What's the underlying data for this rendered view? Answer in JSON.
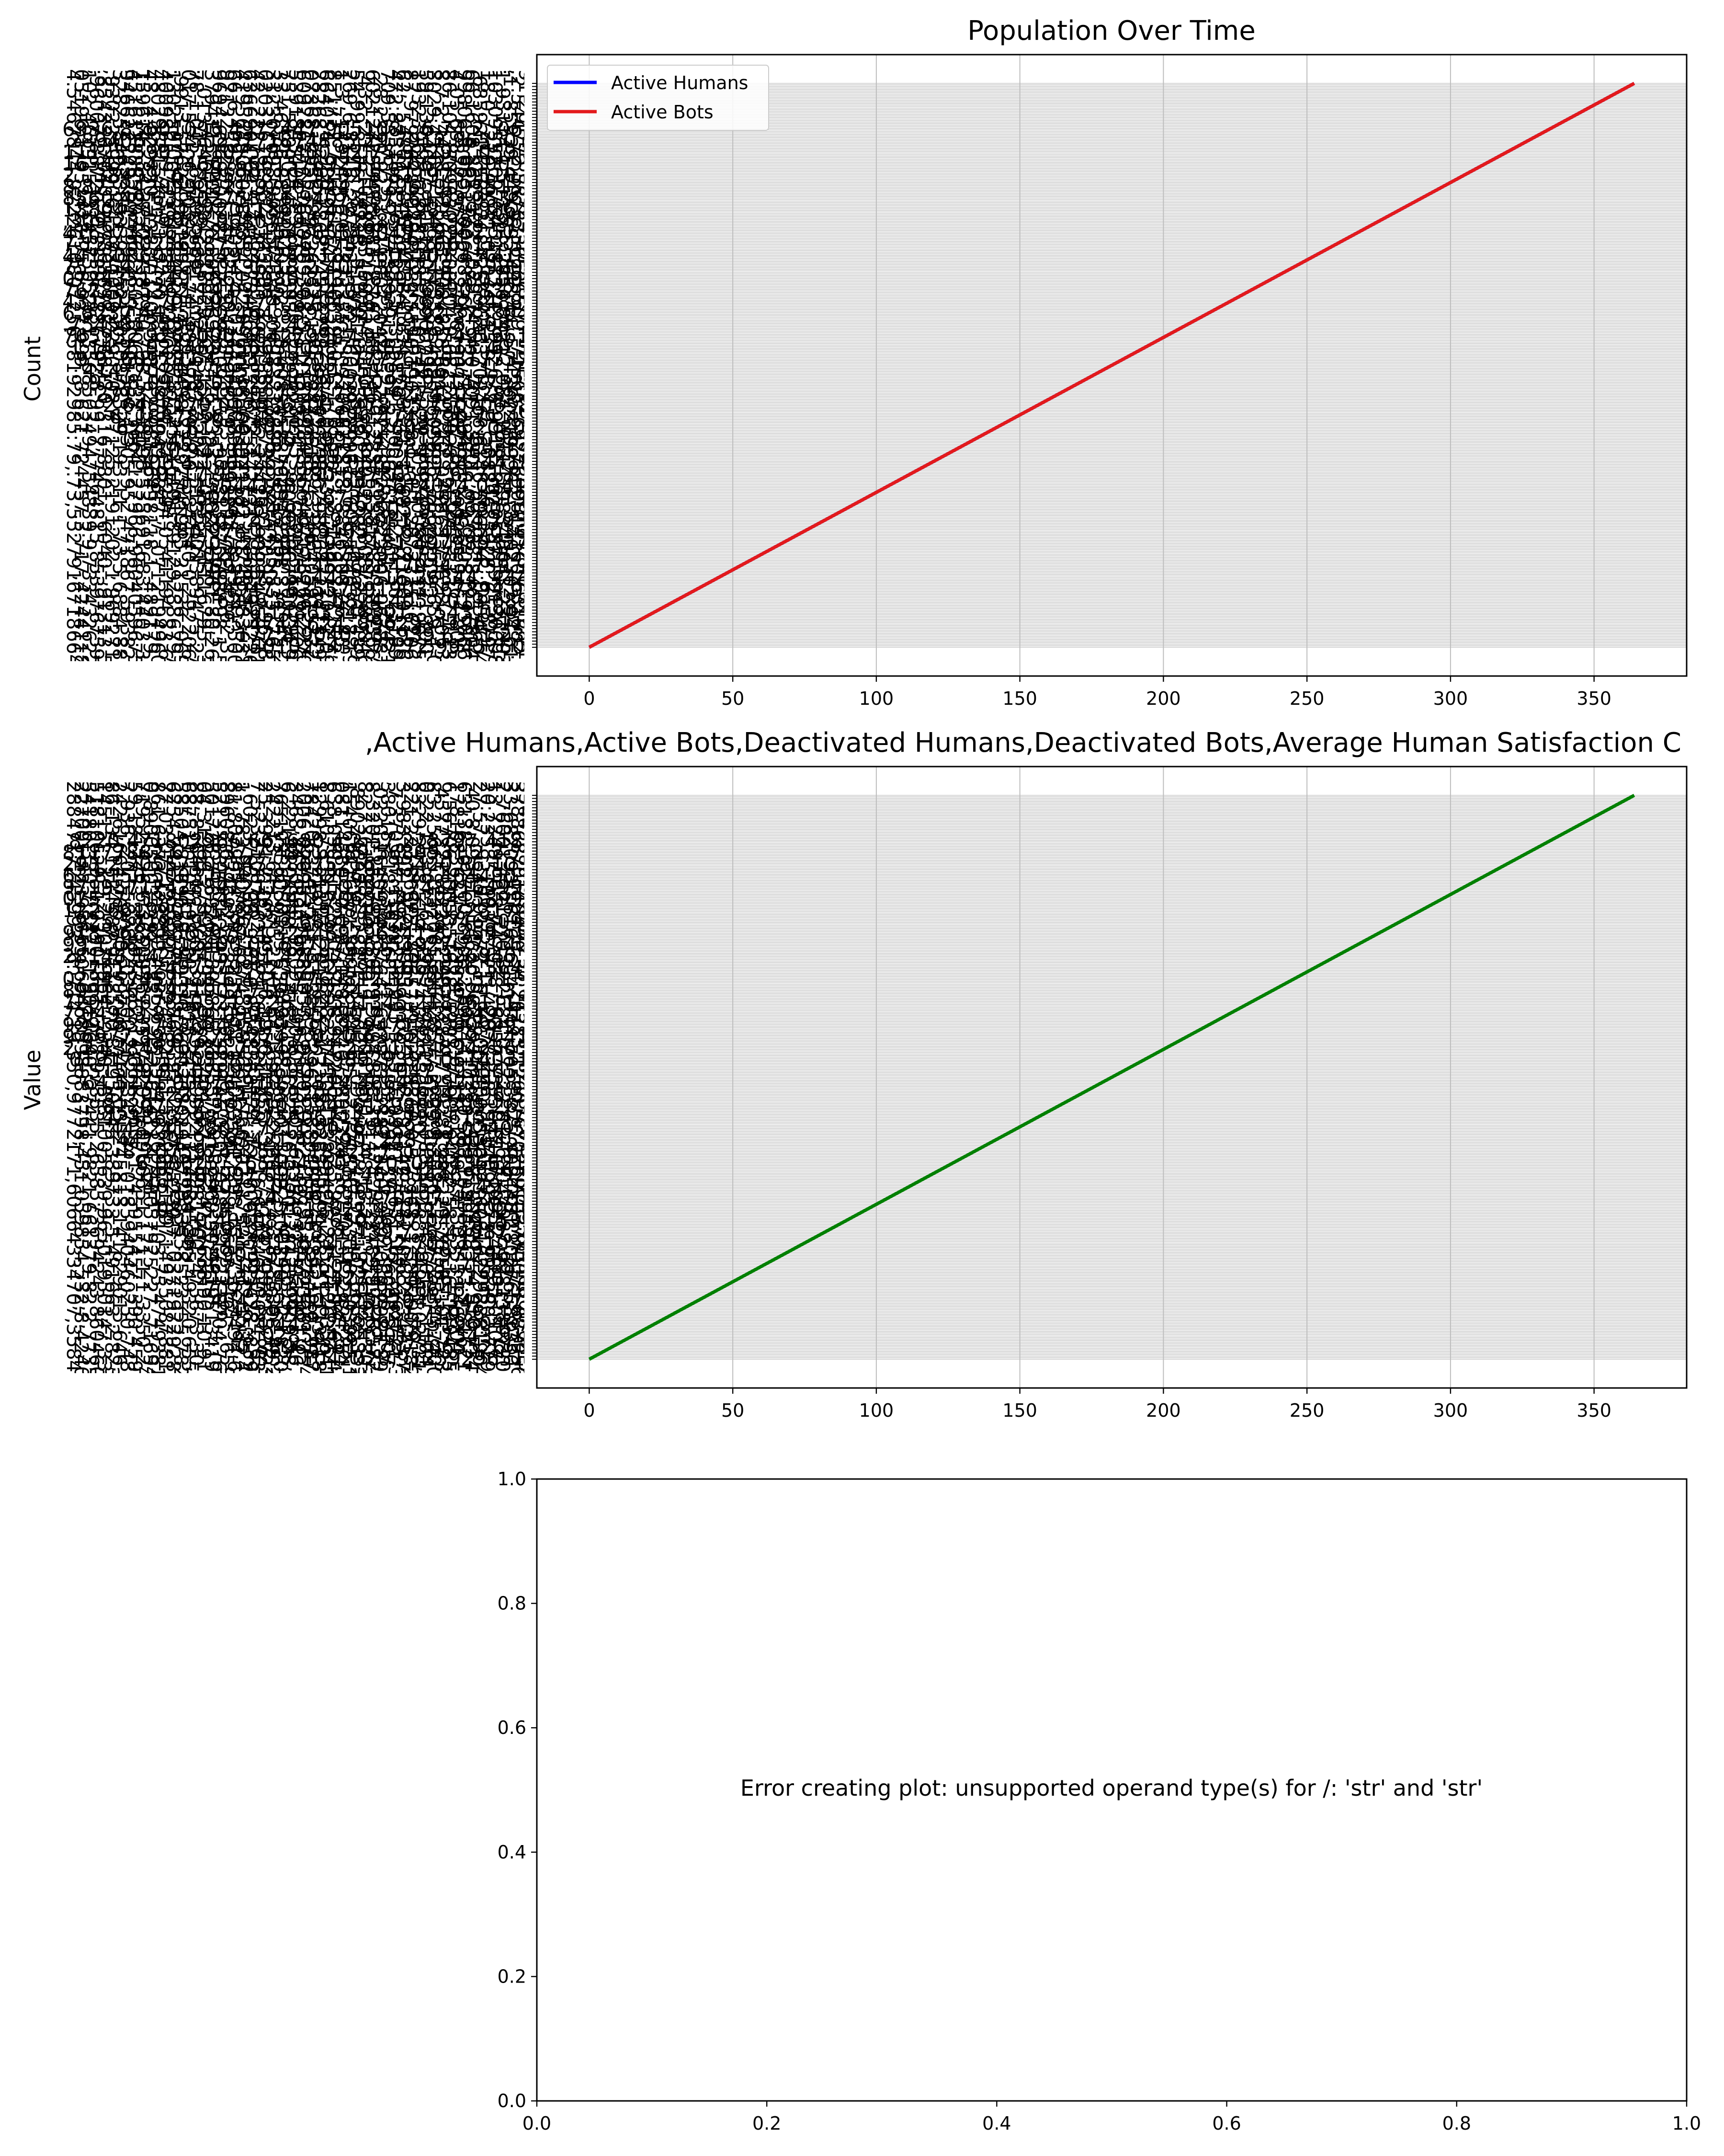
{
  "chart_data": [
    {
      "type": "line",
      "title": "Population Over Time",
      "xlabel": "",
      "ylabel": "Count",
      "xlim": [
        -18.25,
        382.25
      ],
      "xticks": [
        0,
        50,
        100,
        150,
        200,
        250,
        300,
        350
      ],
      "yaxis": "categorical",
      "category_count": 365,
      "grid": true,
      "legend_position": "top-left",
      "series": [
        {
          "name": "Active Humans",
          "color": "#0000ff",
          "x": [
            0,
            364
          ],
          "y": [
            0,
            364
          ]
        },
        {
          "name": "Active Bots",
          "color": "#e31a1c",
          "x": [
            0,
            364
          ],
          "y": [
            0,
            364
          ]
        }
      ]
    },
    {
      "type": "line",
      "title": ",Active Humans,Active Bots,Deactivated Humans,Deactivated Bots,Average Human Satisfaction C",
      "xlabel": "",
      "ylabel": "Value",
      "xlim": [
        -18.25,
        382.25
      ],
      "xticks": [
        0,
        50,
        100,
        150,
        200,
        250,
        300,
        350
      ],
      "yaxis": "categorical",
      "category_count": 365,
      "grid": true,
      "series": [
        {
          "color": "#008000",
          "x": [
            0,
            364
          ],
          "y": [
            0,
            364
          ]
        }
      ]
    },
    {
      "type": "scatter",
      "title": "",
      "xlabel": "",
      "ylabel": "",
      "xlim": [
        0,
        1
      ],
      "ylim": [
        0,
        1
      ],
      "xticks": [
        "0.0",
        "0.2",
        "0.4",
        "0.6",
        "0.8",
        "1.0"
      ],
      "yticks": [
        "0.0",
        "0.2",
        "0.4",
        "0.6",
        "0.8",
        "1.0"
      ],
      "grid": false,
      "annotation": "Error creating plot: unsupported operand type(s) for /: 'str' and 'str'",
      "series": []
    }
  ]
}
